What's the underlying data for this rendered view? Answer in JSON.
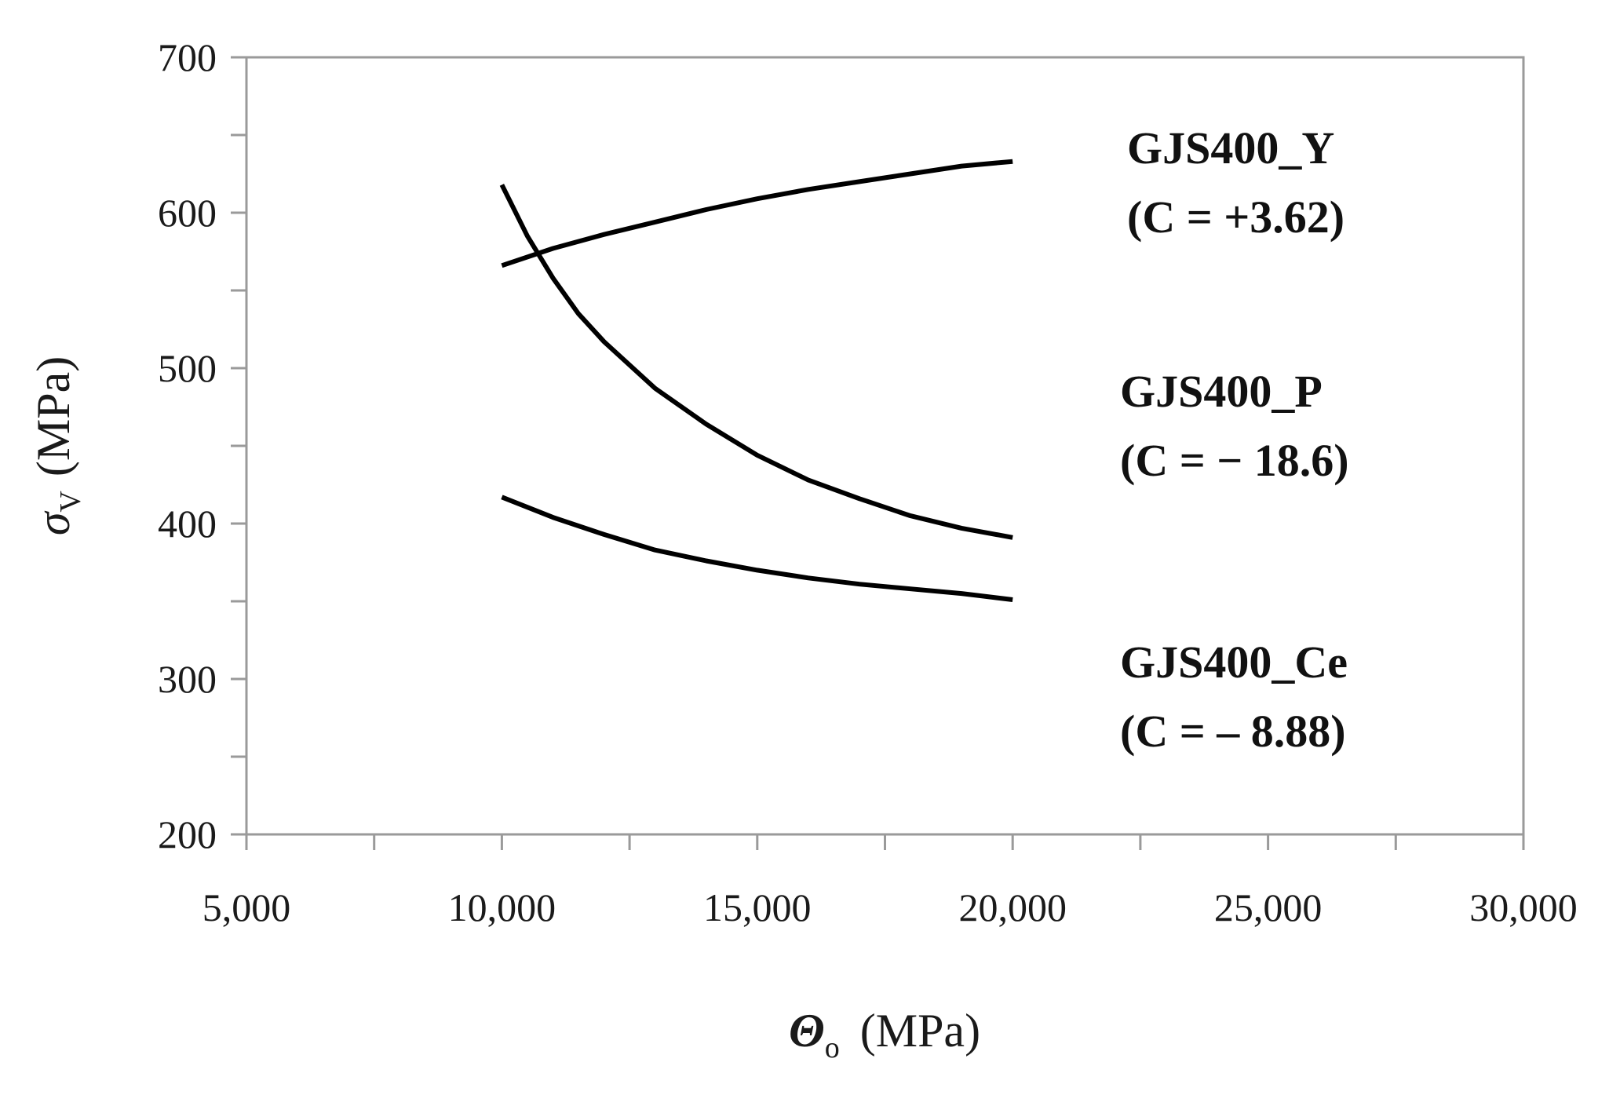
{
  "chart_data": {
    "type": "line",
    "xlabel": {
      "symbol": "Θ",
      "subscript": "o",
      "unit": "(MPa)"
    },
    "ylabel": {
      "symbol": "σ",
      "subscript": "V",
      "unit": "(MPa)"
    },
    "xlim": [
      5000,
      30000
    ],
    "ylim": [
      200,
      700
    ],
    "x_ticks": [
      5000,
      10000,
      15000,
      20000,
      25000,
      30000
    ],
    "x_tick_labels": [
      "5,000",
      "10,000",
      "15,000",
      "20,000",
      "25,000",
      "30,000"
    ],
    "y_ticks": [
      200,
      300,
      400,
      500,
      600,
      700
    ],
    "y_tick_labels": [
      "200",
      "300",
      "400",
      "500",
      "600",
      "700"
    ],
    "grid": false,
    "series": [
      {
        "name": "GJS400_Y",
        "annotation": "(C = +3.62)",
        "color": "#000000",
        "x": [
          10000,
          11000,
          12000,
          13000,
          14000,
          15000,
          16000,
          17000,
          18000,
          19000,
          20000
        ],
        "y": [
          566,
          577,
          586,
          594,
          602,
          609,
          615,
          620,
          625,
          630,
          633
        ]
      },
      {
        "name": "GJS400_P",
        "annotation": "(C = − 18.6)",
        "color": "#000000",
        "x": [
          10000,
          10500,
          11000,
          11500,
          12000,
          13000,
          14000,
          15000,
          16000,
          17000,
          18000,
          19000,
          20000
        ],
        "y": [
          618,
          585,
          558,
          535,
          517,
          487,
          464,
          444,
          428,
          416,
          405,
          397,
          391
        ]
      },
      {
        "name": "GJS400_Ce",
        "annotation": "(C = – 8.88)",
        "color": "#000000",
        "x": [
          10000,
          11000,
          12000,
          13000,
          14000,
          15000,
          16000,
          17000,
          18000,
          19000,
          20000
        ],
        "y": [
          417,
          404,
          393,
          383,
          376,
          370,
          365,
          361,
          358,
          355,
          351
        ]
      }
    ]
  }
}
